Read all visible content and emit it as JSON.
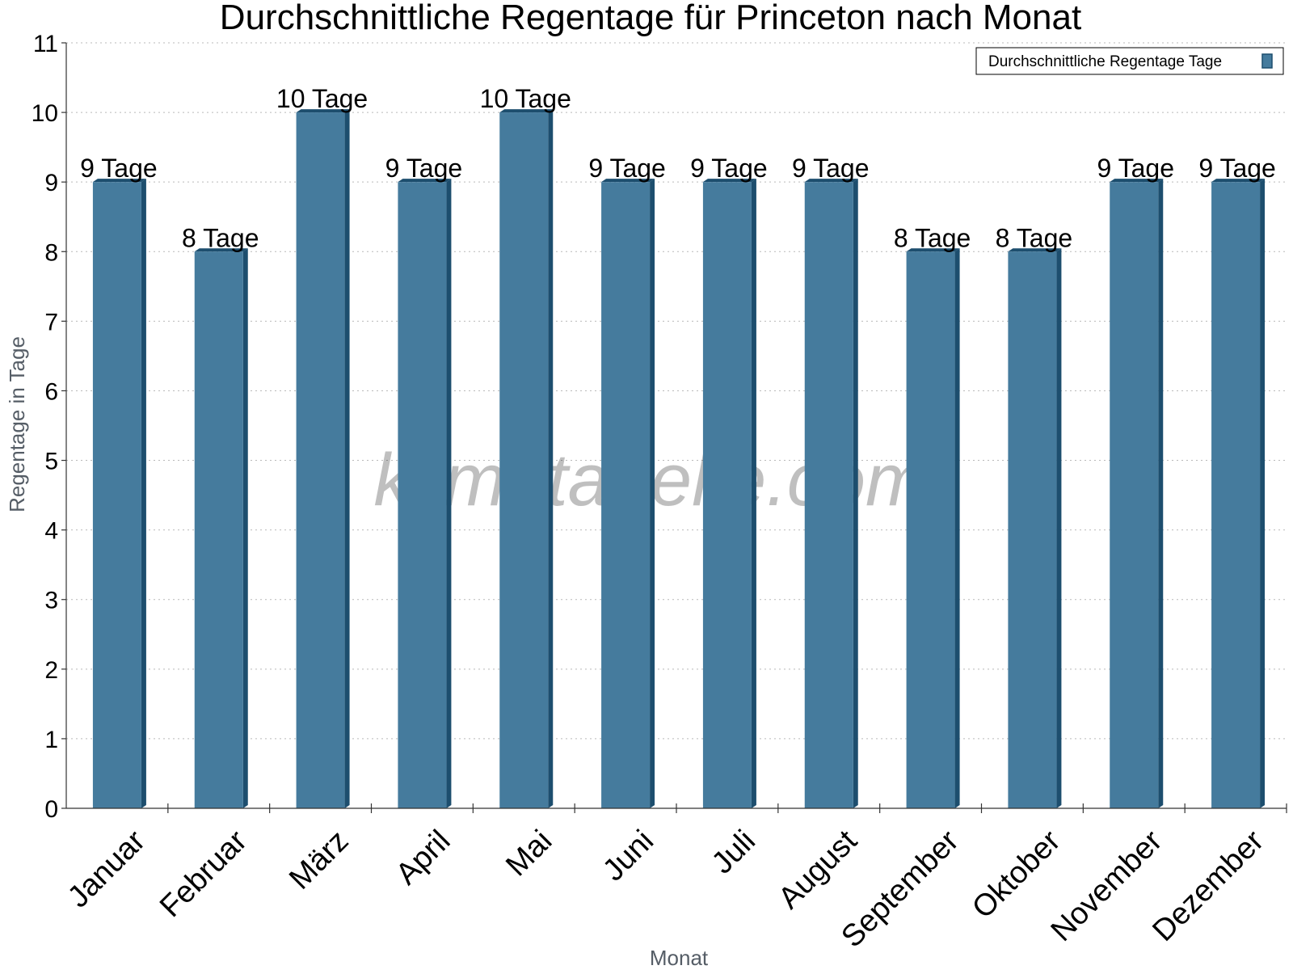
{
  "chart_data": {
    "type": "bar",
    "title": "Durchschnittliche Regentage für Princeton nach Monat",
    "xlabel": "Monat",
    "ylabel": "Regentage in Tage",
    "ylim": [
      0,
      11
    ],
    "yticks": [
      0,
      1,
      2,
      3,
      4,
      5,
      6,
      7,
      8,
      9,
      10,
      11
    ],
    "grid": true,
    "legend_position": "top-right",
    "categories": [
      "Januar",
      "Februar",
      "März",
      "April",
      "Mai",
      "Juni",
      "Juli",
      "August",
      "September",
      "Oktober",
      "November",
      "Dezember"
    ],
    "series": [
      {
        "name": "Durchschnittliche Regentage Tage",
        "values": [
          9,
          8,
          10,
          9,
          10,
          9,
          9,
          9,
          8,
          8,
          9,
          9
        ],
        "labels": [
          "9 Tage",
          "8 Tage",
          "10 Tage",
          "9 Tage",
          "10 Tage",
          "9 Tage",
          "9 Tage",
          "9 Tage",
          "8 Tage",
          "8 Tage",
          "9 Tage",
          "9 Tage"
        ],
        "color": "#457b9d",
        "shade_color": "#1d4e6e"
      }
    ]
  },
  "watermark": "klimatabelle.com"
}
